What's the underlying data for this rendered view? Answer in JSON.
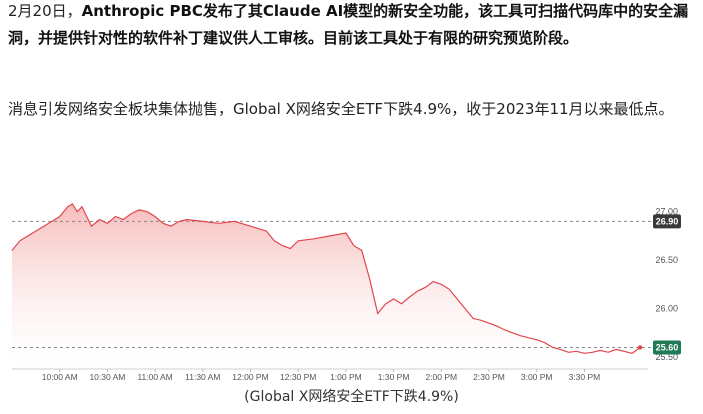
{
  "article": {
    "para1_lead": "2月20日，",
    "para1_bold": "Anthropic PBC发布了其Claude AI模型的新安全功能，该工具可扫描代码库中的安全漏洞，并提供针对性的软件补丁建议供人工审核。目前该工具处于有限的研究预览阶段。",
    "para2": "消息引发网络安全板块集体抛售，Global X网络安全ETF下跌4.9%，收于2023年11月以来最低点。",
    "caption": "(Global X网络安全ETF下跌4.9%)"
  },
  "colors": {
    "line": "#e0474c",
    "fill_top": "#f6b4b4",
    "fill_bottom": "#ffffff",
    "prev_close_badge": "#3a3a3a",
    "last_badge": "#1f7a55"
  },
  "chart_data": {
    "type": "area",
    "title": "",
    "xlabel": "",
    "ylabel": "",
    "x_ticks": [
      "10:00 AM",
      "10:30 AM",
      "11:00 AM",
      "11:30 AM",
      "12:00 PM",
      "12:30 PM",
      "1:00 PM",
      "1:30 PM",
      "2:00 PM",
      "2:30 PM",
      "3:00 PM",
      "3:30 PM"
    ],
    "y_ticks": [
      "27.00",
      "26.50",
      "26.00",
      "25.50"
    ],
    "ylim": [
      25.45,
      27.1
    ],
    "x_range_minutes": [
      570,
      970
    ],
    "reference_line": {
      "label": "26.90",
      "value": 26.9
    },
    "last_price": {
      "label": "25.60",
      "value": 25.6
    },
    "grid": false,
    "series": [
      {
        "x": [
          570,
          575,
          580,
          585,
          590,
          595,
          600,
          605,
          608,
          611,
          614,
          617,
          620,
          625,
          630,
          635,
          640,
          645,
          650,
          655,
          660,
          665,
          670,
          675,
          680,
          690,
          700,
          710,
          720,
          730,
          735,
          740,
          745,
          750,
          760,
          770,
          780,
          785,
          790,
          795,
          800,
          805,
          810,
          815,
          820,
          825,
          830,
          835,
          840,
          845,
          850,
          855,
          860,
          865,
          870,
          875,
          880,
          885,
          890,
          895,
          900,
          905,
          910,
          915,
          920,
          925,
          930,
          935,
          940,
          945,
          950,
          955,
          960,
          965
        ],
        "y": [
          26.6,
          26.7,
          26.75,
          26.8,
          26.85,
          26.9,
          26.95,
          27.05,
          27.08,
          27.0,
          27.05,
          26.95,
          26.85,
          26.92,
          26.88,
          26.95,
          26.92,
          26.98,
          27.02,
          27.0,
          26.95,
          26.88,
          26.85,
          26.9,
          26.92,
          26.9,
          26.88,
          26.9,
          26.85,
          26.8,
          26.7,
          26.65,
          26.62,
          26.7,
          26.72,
          26.75,
          26.78,
          26.65,
          26.6,
          26.3,
          25.95,
          26.05,
          26.1,
          26.05,
          26.12,
          26.18,
          26.22,
          26.28,
          26.25,
          26.2,
          26.1,
          26.0,
          25.9,
          25.88,
          25.85,
          25.82,
          25.78,
          25.75,
          25.72,
          25.7,
          25.68,
          25.65,
          25.6,
          25.58,
          25.55,
          25.56,
          25.54,
          25.55,
          25.57,
          25.55,
          25.58,
          25.56,
          25.54,
          25.6
        ]
      }
    ]
  }
}
